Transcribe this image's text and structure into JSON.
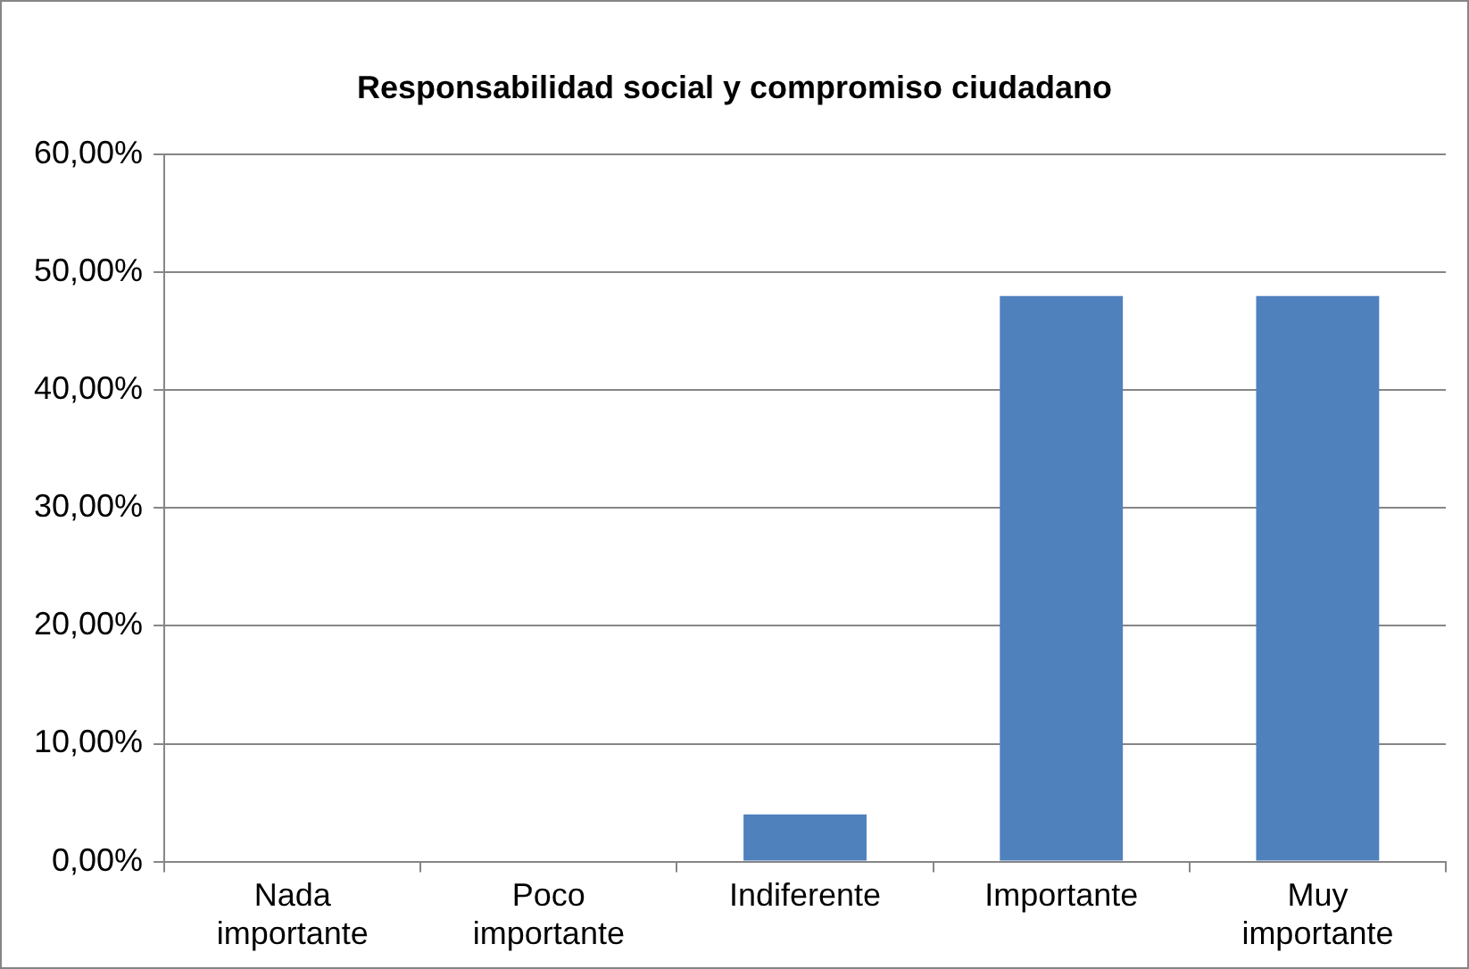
{
  "chart_data": {
    "type": "bar",
    "title": "Responsabilidad social y compromiso ciudadano",
    "categories": [
      "Nada importante",
      "Poco importante",
      "Indiferente",
      "Importante",
      "Muy importante"
    ],
    "values": [
      0,
      0,
      4,
      48,
      48
    ],
    "color": "#4f81bd",
    "ylim": [
      0,
      60
    ],
    "yticks": [
      {
        "value": 0,
        "label": "0,00%"
      },
      {
        "value": 10,
        "label": "10,00%"
      },
      {
        "value": 20,
        "label": "20,00%"
      },
      {
        "value": 30,
        "label": "30,00%"
      },
      {
        "value": 40,
        "label": "40,00%"
      },
      {
        "value": 50,
        "label": "50,00%"
      },
      {
        "value": 60,
        "label": "60,00%"
      }
    ],
    "grid": "y"
  }
}
